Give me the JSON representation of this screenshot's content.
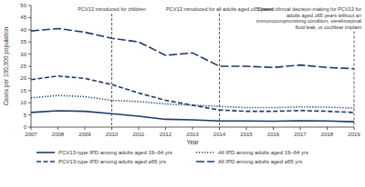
{
  "chart_data": {
    "type": "line",
    "x_label": "Year",
    "y_label": "Cases per 100,000 population",
    "x": [
      2007,
      2008,
      2009,
      2010,
      2011,
      2012,
      2013,
      2014,
      2015,
      2016,
      2017,
      2018,
      2019
    ],
    "xlim": [
      2007,
      2019
    ],
    "xticks": [
      2007,
      2008,
      2009,
      2010,
      2011,
      2012,
      2013,
      2014,
      2015,
      2016,
      2017,
      2018,
      2019
    ],
    "ylim": [
      0,
      50
    ],
    "yticks": [
      0,
      5,
      10,
      15,
      20,
      25,
      30,
      35,
      40,
      45,
      50
    ],
    "grid": false,
    "legend": "bottom",
    "series": [
      {
        "name": "PCV13-type IPD among adults aged 19–64 yrs",
        "color": "#1f3a68",
        "line_style": "solid",
        "values": [
          6,
          6.7,
          6.5,
          5.5,
          4.5,
          3.2,
          3,
          2.5,
          2.5,
          2.4,
          2.6,
          2.5,
          2.2
        ]
      },
      {
        "name": "PCV13-type IPD among adults aged ≥65 yrs",
        "color": "#1f3a68",
        "line_style": "dashed",
        "values": [
          19.5,
          21,
          20,
          17.5,
          14,
          11,
          9,
          7,
          6.5,
          6.5,
          6.8,
          6.5,
          6
        ]
      },
      {
        "name": "All IPD among adults aged 19–64 yrs",
        "color": "#1f3a68",
        "line_style": "dotted",
        "values": [
          12,
          13,
          12.5,
          11,
          10.5,
          9.5,
          9,
          8.5,
          8,
          8,
          8.3,
          8.2,
          7.8
        ]
      },
      {
        "name": "All IPD among adults aged ≥65 yrs",
        "color": "#1f3a68",
        "line_style": "long-dashed",
        "values": [
          39.5,
          40.5,
          39,
          36.5,
          35,
          29.5,
          30.5,
          25,
          25,
          24.5,
          25.5,
          24.5,
          24
        ]
      }
    ],
    "annotations": [
      {
        "x": 2010,
        "text": "PCV13 introduced for children"
      },
      {
        "x": 2014,
        "text": "PCV13 introduced for all adults aged ≥65 years"
      },
      {
        "x": 2019,
        "text": "Shared clinical decision-making for PCV13 for adults aged ≥65 years without an immunocompromising condition, cerebrospinal fluid leak, or cochlear implant"
      }
    ]
  }
}
